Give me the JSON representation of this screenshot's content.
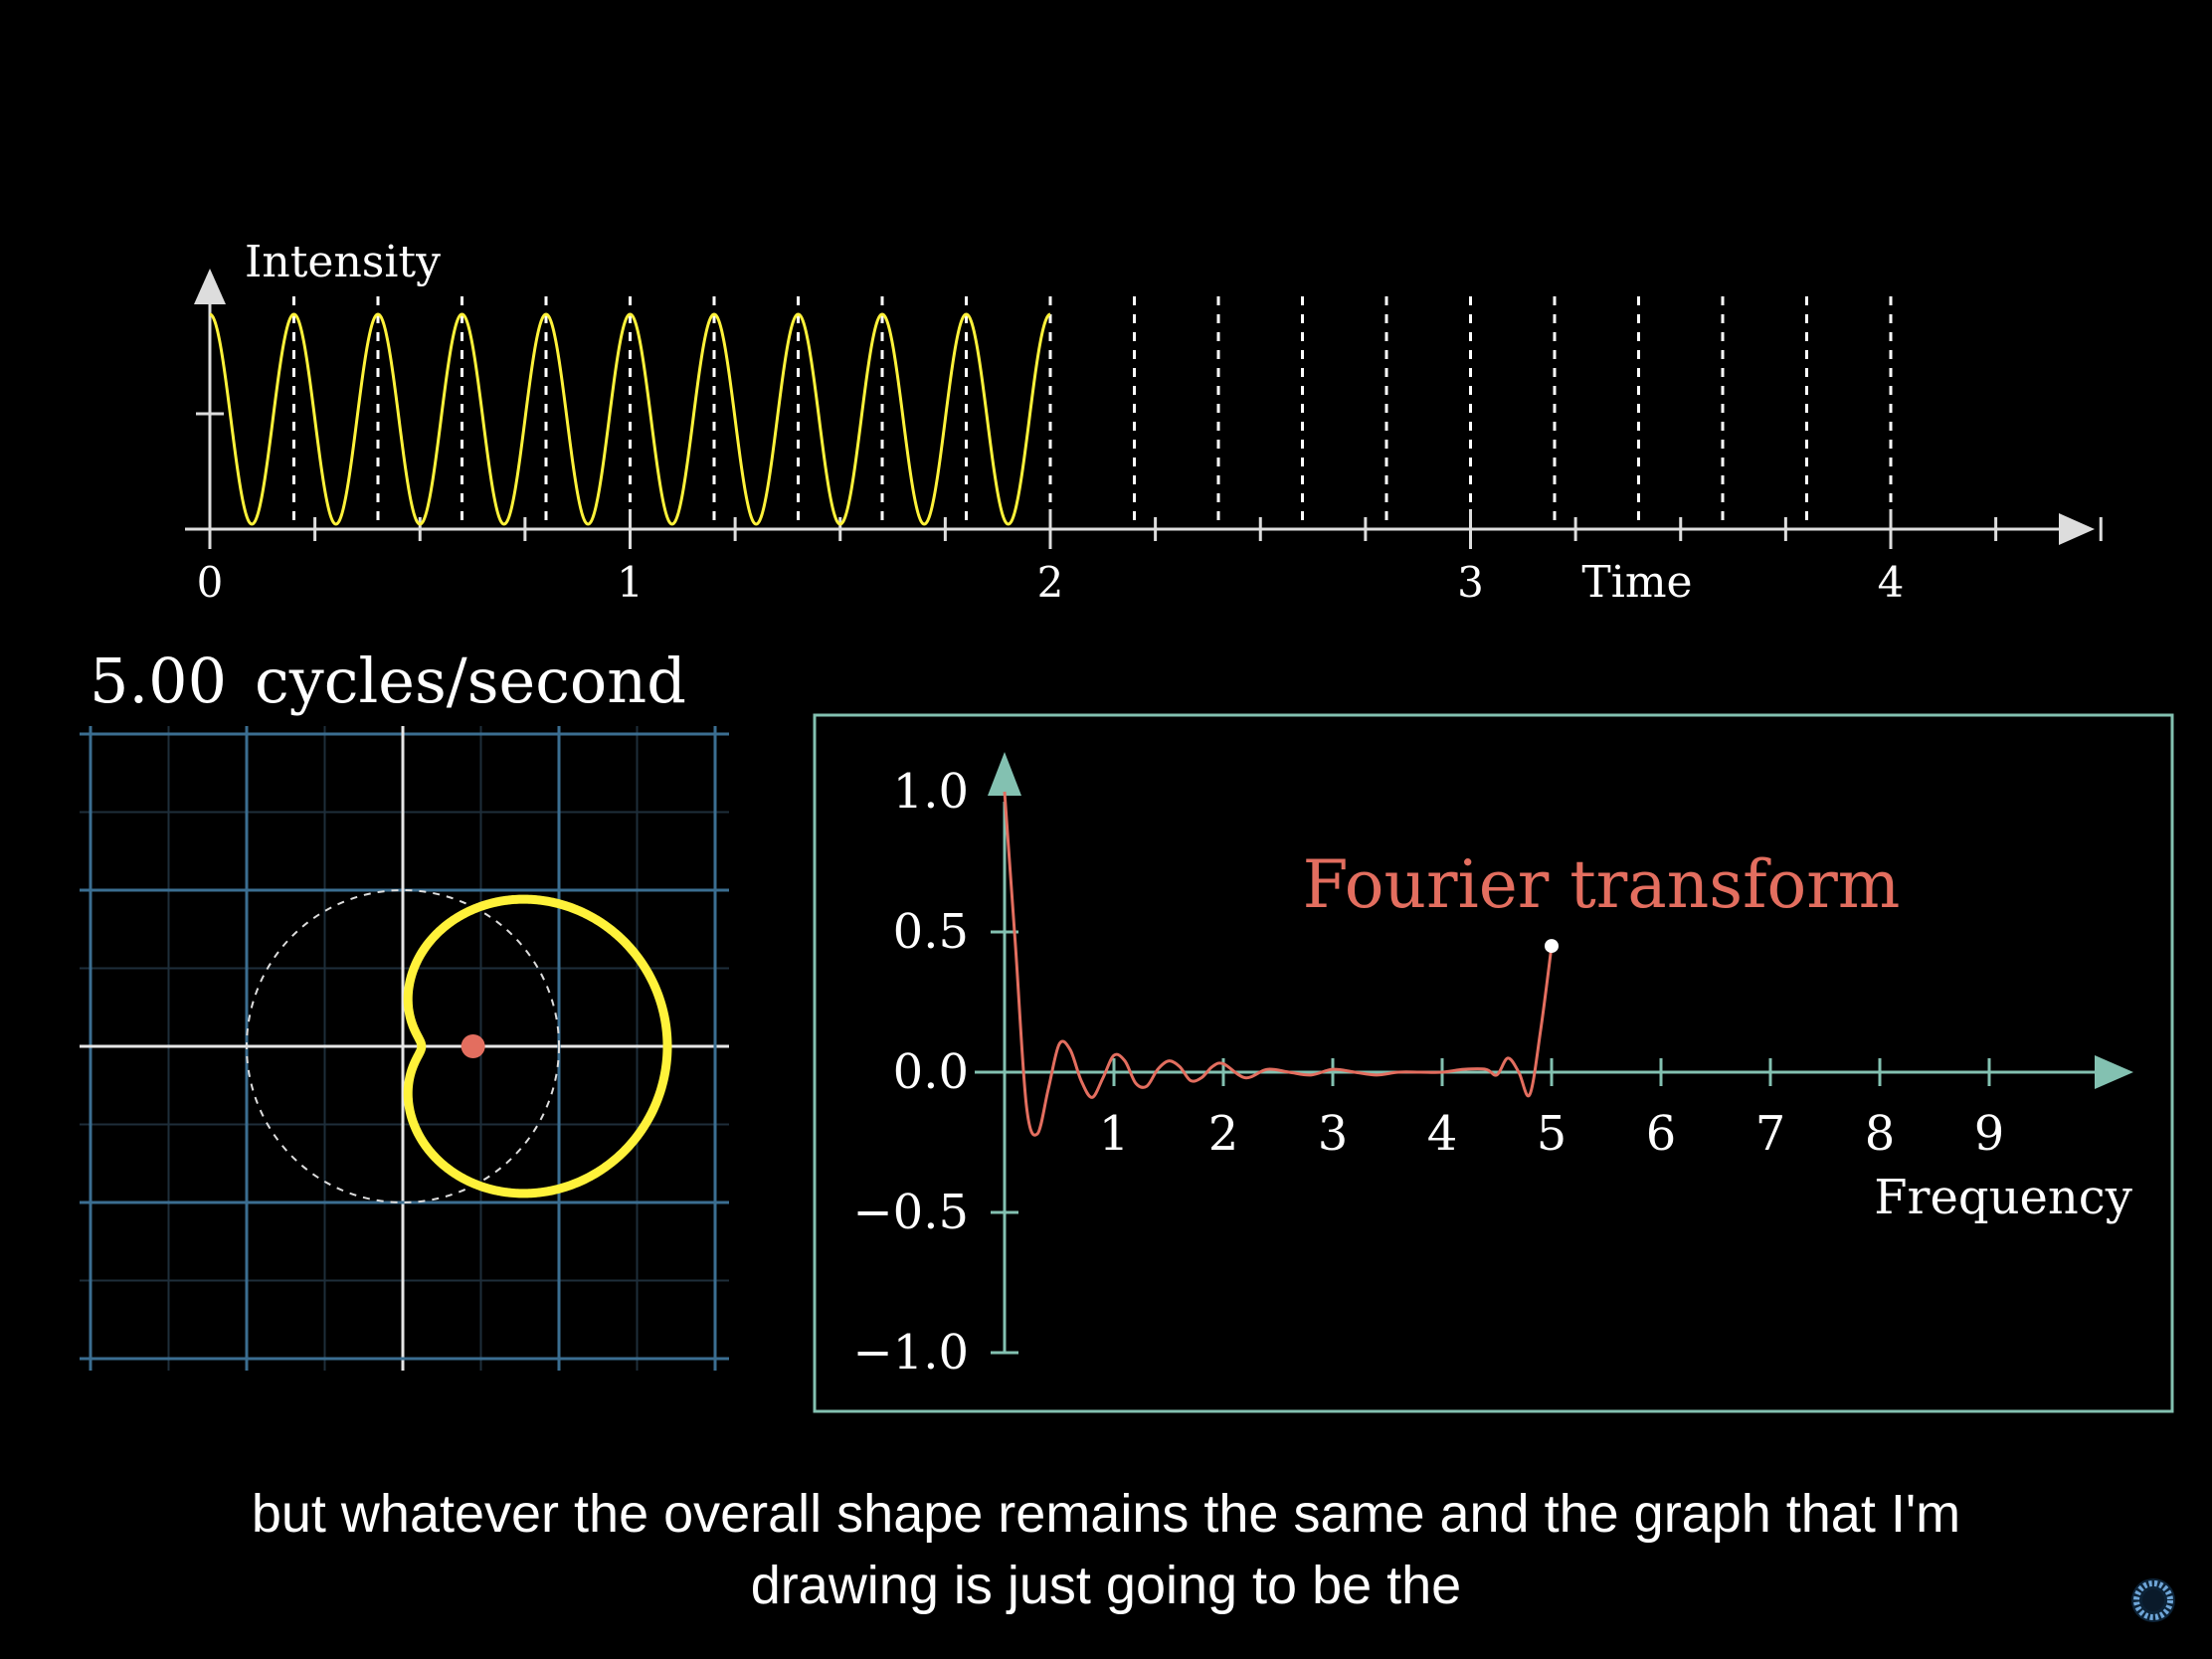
{
  "colors": {
    "background": "#000000",
    "signal": "#FFF23A",
    "axis": "#DDDDDD",
    "teal": "#83C1B1",
    "transform": "#E36E5F",
    "grid": "#3B6E91",
    "white": "#FFFFFF"
  },
  "subtitles": {
    "line1": "but whatever the overall shape remains the same and the graph that I'm",
    "line2": "drawing is just going to be the"
  },
  "icons": {
    "loading": "loading-spinner-icon"
  },
  "chart_data": [
    {
      "type": "line",
      "ylabel": "Intensity",
      "xlabel": "Time",
      "xlim": [
        0,
        4.5
      ],
      "ylim": [
        0,
        1
      ],
      "x_ticks": [
        "0",
        "1",
        "2",
        "3",
        "4"
      ],
      "series": [
        {
          "function": "0.5 + 0.5*cos(2*pi*5*t)",
          "frequency": 5,
          "x_start": 0,
          "x_end": 2
        }
      ],
      "winding_marker_period": 0.2,
      "winding_markers_until": 4
    },
    {
      "type": "scatter",
      "title": "5.00 cycles/second",
      "title_value": "5.00",
      "title_unit": "cycles/second",
      "winding_frequency": 5,
      "center_of_mass": [
        0.25,
        0
      ],
      "xlim": [
        -1,
        1
      ],
      "ylim": [
        -1,
        1
      ],
      "grid": true
    },
    {
      "type": "line",
      "title": "Fourier transform",
      "xlabel": "Frequency",
      "x_ticks": [
        "1",
        "2",
        "3",
        "4",
        "5",
        "6",
        "7",
        "8",
        "9"
      ],
      "y_ticks": [
        "1.0",
        "0.5",
        "0.0",
        "−0.5",
        "−1.0"
      ],
      "xlim": [
        0,
        10
      ],
      "ylim": [
        -1,
        1
      ],
      "series": [
        {
          "x": [
            0,
            0.1,
            0.2,
            0.3,
            0.4,
            0.5,
            0.6,
            0.7,
            0.8,
            0.9,
            1.0,
            1.1,
            1.2,
            1.3,
            1.4,
            1.5,
            1.6,
            1.7,
            1.8,
            1.9,
            2.0,
            2.2,
            2.4,
            2.6,
            2.8,
            3.0,
            3.2,
            3.4,
            3.6,
            3.8,
            4.0,
            4.2,
            4.4,
            4.5,
            4.6,
            4.7,
            4.8,
            4.9,
            5.0
          ],
          "y": [
            1.0,
            0.45,
            -0.12,
            -0.22,
            -0.06,
            0.1,
            0.08,
            -0.03,
            -0.09,
            -0.02,
            0.06,
            0.04,
            -0.04,
            -0.05,
            0.01,
            0.04,
            0.02,
            -0.03,
            -0.02,
            0.02,
            0.03,
            -0.02,
            0.01,
            0.0,
            -0.01,
            0.01,
            0.0,
            -0.01,
            0.0,
            0.0,
            0.0,
            0.01,
            0.01,
            -0.01,
            0.05,
            0.0,
            -0.08,
            0.15,
            0.45
          ]
        }
      ],
      "endpoint": [
        5.0,
        0.45
      ]
    }
  ]
}
